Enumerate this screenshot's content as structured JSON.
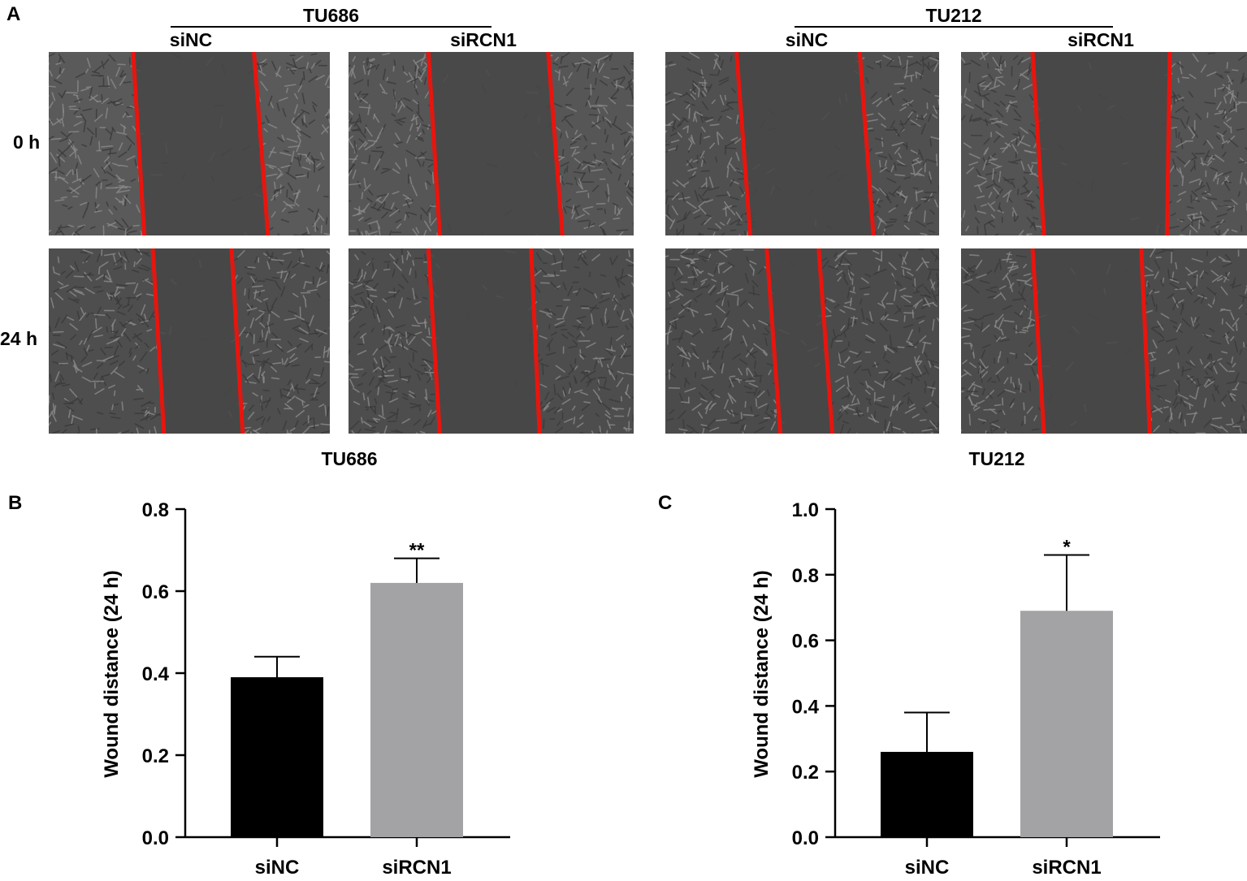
{
  "panel_a": {
    "letter": "A",
    "groups": [
      {
        "name": "TU686",
        "conditions": [
          "siNC",
          "siRCN1"
        ],
        "footer": "TU686"
      },
      {
        "name": "TU212",
        "conditions": [
          "siNC",
          "siRCN1"
        ],
        "footer": "TU212"
      }
    ],
    "time_labels": [
      "0 h",
      "24 h"
    ],
    "line_color": "#e8150e"
  },
  "chart_data": [
    {
      "panel": "B",
      "type": "bar",
      "categories": [
        "siNC",
        "siRCN1"
      ],
      "values": [
        0.39,
        0.62
      ],
      "errors": [
        0.05,
        0.06
      ],
      "significance": [
        "",
        "**"
      ],
      "colors": [
        "#000000",
        "#a3a3a6"
      ],
      "xlabel": "",
      "ylabel": "Wound distance (24 h)",
      "ylim": [
        0,
        0.8
      ],
      "yticks": [
        "0.0",
        "0.2",
        "0.4",
        "0.6",
        "0.8"
      ],
      "ytick_values": [
        0,
        0.2,
        0.4,
        0.6,
        0.8
      ]
    },
    {
      "panel": "C",
      "type": "bar",
      "categories": [
        "siNC",
        "siRCN1"
      ],
      "values": [
        0.26,
        0.69
      ],
      "errors": [
        0.12,
        0.17
      ],
      "significance": [
        "",
        "*"
      ],
      "colors": [
        "#000000",
        "#a3a3a6"
      ],
      "xlabel": "",
      "ylabel": "Wound distance (24 h)",
      "ylim": [
        0,
        1.0
      ],
      "yticks": [
        "0.0",
        "0.2",
        "0.4",
        "0.6",
        "0.8",
        "1.0"
      ],
      "ytick_values": [
        0,
        0.2,
        0.4,
        0.6,
        0.8,
        1.0
      ]
    }
  ]
}
